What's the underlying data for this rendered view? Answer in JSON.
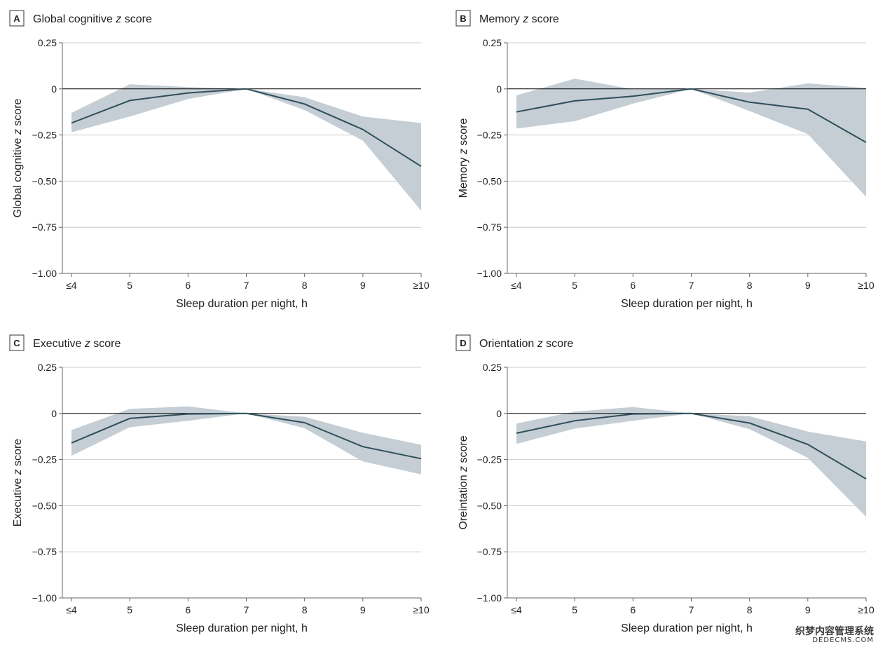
{
  "colors": {
    "line": "#2f4f5a",
    "band": "#c4ced4",
    "grid": "#cccccc",
    "zero": "#000000",
    "axis": "#666666",
    "text": "#222222"
  },
  "watermark": {
    "line1": "织梦内容管理系统",
    "line2": "DEDECMS.COM"
  },
  "chart_data": [
    {
      "type": "line",
      "panel_letter": "A",
      "title_prefix": "Global cognitive ",
      "title_italic": "z",
      "title_suffix": " score",
      "ylabel_prefix": "Global cognitive ",
      "ylabel_italic": "z",
      "ylabel_suffix": " score",
      "xlabel": "Sleep duration per night, h",
      "categories": [
        "≤4",
        "5",
        "6",
        "7",
        "8",
        "9",
        "≥10"
      ],
      "ylim": [
        -1.0,
        0.25
      ],
      "yticks": [
        0.25,
        0,
        -0.25,
        -0.5,
        -0.75,
        -1.0
      ],
      "ytick_labels": [
        "0.25",
        "0",
        "−0.25",
        "−0.50",
        "−0.75",
        "−1.00"
      ],
      "series": [
        {
          "name": "estimate",
          "values": [
            -0.185,
            -0.063,
            -0.022,
            0,
            -0.082,
            -0.22,
            -0.42
          ]
        },
        {
          "name": "upper_ci",
          "values": [
            -0.13,
            0.025,
            0.01,
            0,
            -0.045,
            -0.15,
            -0.185
          ]
        },
        {
          "name": "lower_ci",
          "values": [
            -0.235,
            -0.15,
            -0.055,
            0,
            -0.115,
            -0.28,
            -0.66
          ]
        }
      ]
    },
    {
      "type": "line",
      "panel_letter": "B",
      "title_prefix": "Memory ",
      "title_italic": "z",
      "title_suffix": " score",
      "ylabel_prefix": "Memory ",
      "ylabel_italic": "z",
      "ylabel_suffix": " score",
      "xlabel": "Sleep duration per night, h",
      "categories": [
        "≤4",
        "5",
        "6",
        "7",
        "8",
        "9",
        "≥10"
      ],
      "ylim": [
        -1.0,
        0.25
      ],
      "yticks": [
        0.25,
        0,
        -0.25,
        -0.5,
        -0.75,
        -1.0
      ],
      "ytick_labels": [
        "0.25",
        "0",
        "−0.25",
        "−0.50",
        "−0.75",
        "−1.00"
      ],
      "series": [
        {
          "name": "estimate",
          "values": [
            -0.125,
            -0.065,
            -0.04,
            0,
            -0.072,
            -0.11,
            -0.29
          ]
        },
        {
          "name": "upper_ci",
          "values": [
            -0.035,
            0.055,
            -0.002,
            0,
            -0.02,
            0.03,
            0.005
          ]
        },
        {
          "name": "lower_ci",
          "values": [
            -0.215,
            -0.175,
            -0.08,
            0,
            -0.12,
            -0.245,
            -0.585
          ]
        }
      ]
    },
    {
      "type": "line",
      "panel_letter": "C",
      "title_prefix": "Executive ",
      "title_italic": "z",
      "title_suffix": " score",
      "ylabel_prefix": "Executive ",
      "ylabel_italic": "z",
      "ylabel_suffix": " score",
      "xlabel": "Sleep duration per night, h",
      "categories": [
        "≤4",
        "5",
        "6",
        "7",
        "8",
        "9",
        "≥10"
      ],
      "ylim": [
        -1.0,
        0.25
      ],
      "yticks": [
        0.25,
        0,
        -0.25,
        -0.5,
        -0.75,
        -1.0
      ],
      "ytick_labels": [
        "0.25",
        "0",
        "−0.25",
        "−0.50",
        "−0.75",
        "−1.00"
      ],
      "series": [
        {
          "name": "estimate",
          "values": [
            -0.16,
            -0.027,
            -0.003,
            0,
            -0.05,
            -0.18,
            -0.245
          ]
        },
        {
          "name": "upper_ci",
          "values": [
            -0.09,
            0.025,
            0.038,
            0,
            -0.018,
            -0.105,
            -0.17
          ]
        },
        {
          "name": "lower_ci",
          "values": [
            -0.23,
            -0.075,
            -0.04,
            0,
            -0.08,
            -0.26,
            -0.33
          ]
        }
      ]
    },
    {
      "type": "line",
      "panel_letter": "D",
      "title_prefix": "Orientation ",
      "title_italic": "z",
      "title_suffix": " score",
      "ylabel_prefix": "Oreintation ",
      "ylabel_italic": "z",
      "ylabel_suffix": " score",
      "xlabel": "Sleep duration per night, h",
      "categories": [
        "≤4",
        "5",
        "6",
        "7",
        "8",
        "9",
        "≥10"
      ],
      "ylim": [
        -1.0,
        0.25
      ],
      "yticks": [
        0.25,
        0,
        -0.25,
        -0.5,
        -0.75,
        -1.0
      ],
      "ytick_labels": [
        "0.25",
        "0",
        "−0.25",
        "−0.50",
        "−0.75",
        "−1.00"
      ],
      "series": [
        {
          "name": "estimate",
          "values": [
            -0.107,
            -0.04,
            -0.003,
            0,
            -0.052,
            -0.168,
            -0.355
          ]
        },
        {
          "name": "upper_ci",
          "values": [
            -0.055,
            0.01,
            0.035,
            0,
            -0.015,
            -0.098,
            -0.152
          ]
        },
        {
          "name": "lower_ci",
          "values": [
            -0.165,
            -0.082,
            -0.04,
            0,
            -0.085,
            -0.24,
            -0.56
          ]
        }
      ]
    }
  ]
}
